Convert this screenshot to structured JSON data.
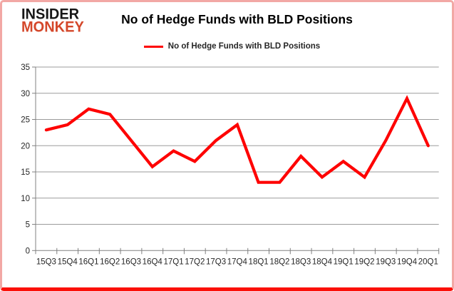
{
  "brand": {
    "line1": "INSIDER",
    "line2": "MONKEY"
  },
  "title": "No of Hedge Funds with BLD Positions",
  "legend": {
    "label": "No of Hedge Funds with BLD Positions"
  },
  "colors": {
    "line": "#fe0000",
    "logo_black": "#171717",
    "logo_red": "#d4472a",
    "grid": "#9b9b9b",
    "axis": "#808080",
    "tick_text": "#262626",
    "frame_border": "#f2a8a5",
    "frame_border_bottom": "#fb0f07"
  },
  "chart_data": {
    "type": "line",
    "title": "No of Hedge Funds with BLD Positions",
    "categories": [
      "15Q3",
      "15Q4",
      "16Q1",
      "16Q2",
      "16Q3",
      "16Q4",
      "17Q1",
      "17Q2",
      "17Q3",
      "17Q4",
      "18Q1",
      "18Q2",
      "18Q3",
      "18Q4",
      "19Q1",
      "19Q2",
      "19Q3",
      "19Q4",
      "20Q1"
    ],
    "values": [
      23,
      24,
      27,
      26,
      21,
      16,
      19,
      17,
      21,
      24,
      13,
      13,
      18,
      14,
      17,
      14,
      21,
      29,
      20
    ],
    "series_name": "No of Hedge Funds with BLD Positions",
    "xlabel": "",
    "ylabel": "",
    "ylim": [
      0,
      35
    ],
    "ytick_step": 5,
    "grid": true,
    "legend_position": "top-center"
  }
}
